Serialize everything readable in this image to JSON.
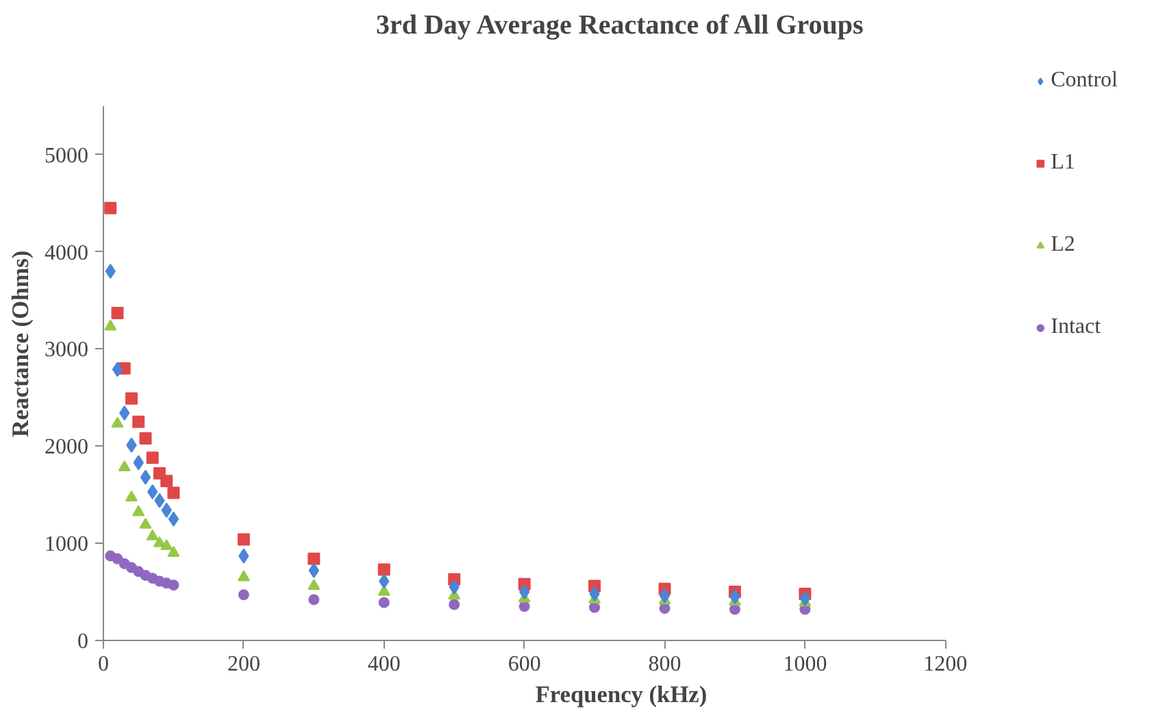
{
  "chart_data": {
    "type": "scatter",
    "title": "3rd Day Average Reactance of All Groups",
    "xlabel": "Frequency (kHz)",
    "ylabel": "Reactance (Ohms)",
    "x": [
      10,
      20,
      30,
      40,
      50,
      60,
      70,
      80,
      90,
      100,
      200,
      300,
      400,
      500,
      600,
      700,
      800,
      900,
      1000
    ],
    "xlim": [
      0,
      1200
    ],
    "xticks": [
      0,
      200,
      400,
      600,
      800,
      1000,
      1200
    ],
    "ylim": [
      0,
      5500
    ],
    "yticks": [
      0,
      1000,
      2000,
      3000,
      4000,
      5000
    ],
    "grid": false,
    "legend": "right",
    "series": [
      {
        "name": "Control",
        "color": "#4a86d6",
        "marker": "diamond",
        "values": [
          3800,
          2790,
          2340,
          2010,
          1830,
          1680,
          1530,
          1440,
          1340,
          1250,
          870,
          720,
          610,
          550,
          500,
          480,
          460,
          450,
          430
        ]
      },
      {
        "name": "L1",
        "color": "#e04848",
        "marker": "square",
        "values": [
          4450,
          3370,
          2800,
          2490,
          2250,
          2080,
          1880,
          1720,
          1640,
          1520,
          1040,
          840,
          730,
          630,
          580,
          560,
          530,
          500,
          480
        ]
      },
      {
        "name": "L2",
        "color": "#96c848",
        "marker": "triangle",
        "values": [
          3230,
          2230,
          1780,
          1470,
          1320,
          1190,
          1070,
          1000,
          970,
          900,
          650,
          560,
          500,
          460,
          430,
          420,
          410,
          400,
          390
        ]
      },
      {
        "name": "Intact",
        "color": "#9068c0",
        "marker": "circle",
        "values": [
          870,
          840,
          790,
          750,
          710,
          670,
          640,
          610,
          590,
          570,
          470,
          420,
          390,
          370,
          350,
          340,
          330,
          320,
          320
        ]
      }
    ]
  }
}
